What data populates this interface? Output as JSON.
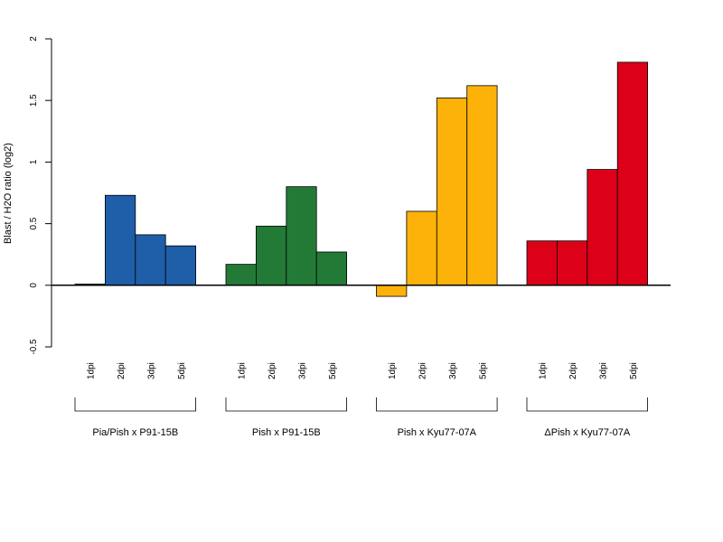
{
  "chart_data": {
    "type": "bar",
    "ylabel": "Blast / H2O ratio (log2)",
    "ylim": [
      -0.5,
      2
    ],
    "yticks": [
      "-0.5",
      "0",
      "0.5",
      "1",
      "1.5",
      "2"
    ],
    "categories": [
      "1dpi",
      "2dpi",
      "3dpi",
      "5dpi"
    ],
    "groups": [
      {
        "name": "Pia/Pish x P91-15B",
        "color": "#1f5ea8",
        "values": [
          0.01,
          0.73,
          0.41,
          0.32
        ]
      },
      {
        "name": "Pish x P91-15B",
        "color": "#237a37",
        "values": [
          0.17,
          0.48,
          0.8,
          0.27
        ]
      },
      {
        "name": "Pish x Kyu77-07A",
        "color": "#fdb20a",
        "values": [
          -0.09,
          0.6,
          1.52,
          1.62
        ]
      },
      {
        "name": "ΔPish x Kyu77-07A",
        "color": "#dc0018",
        "values": [
          0.36,
          0.36,
          0.94,
          1.81
        ]
      }
    ]
  }
}
